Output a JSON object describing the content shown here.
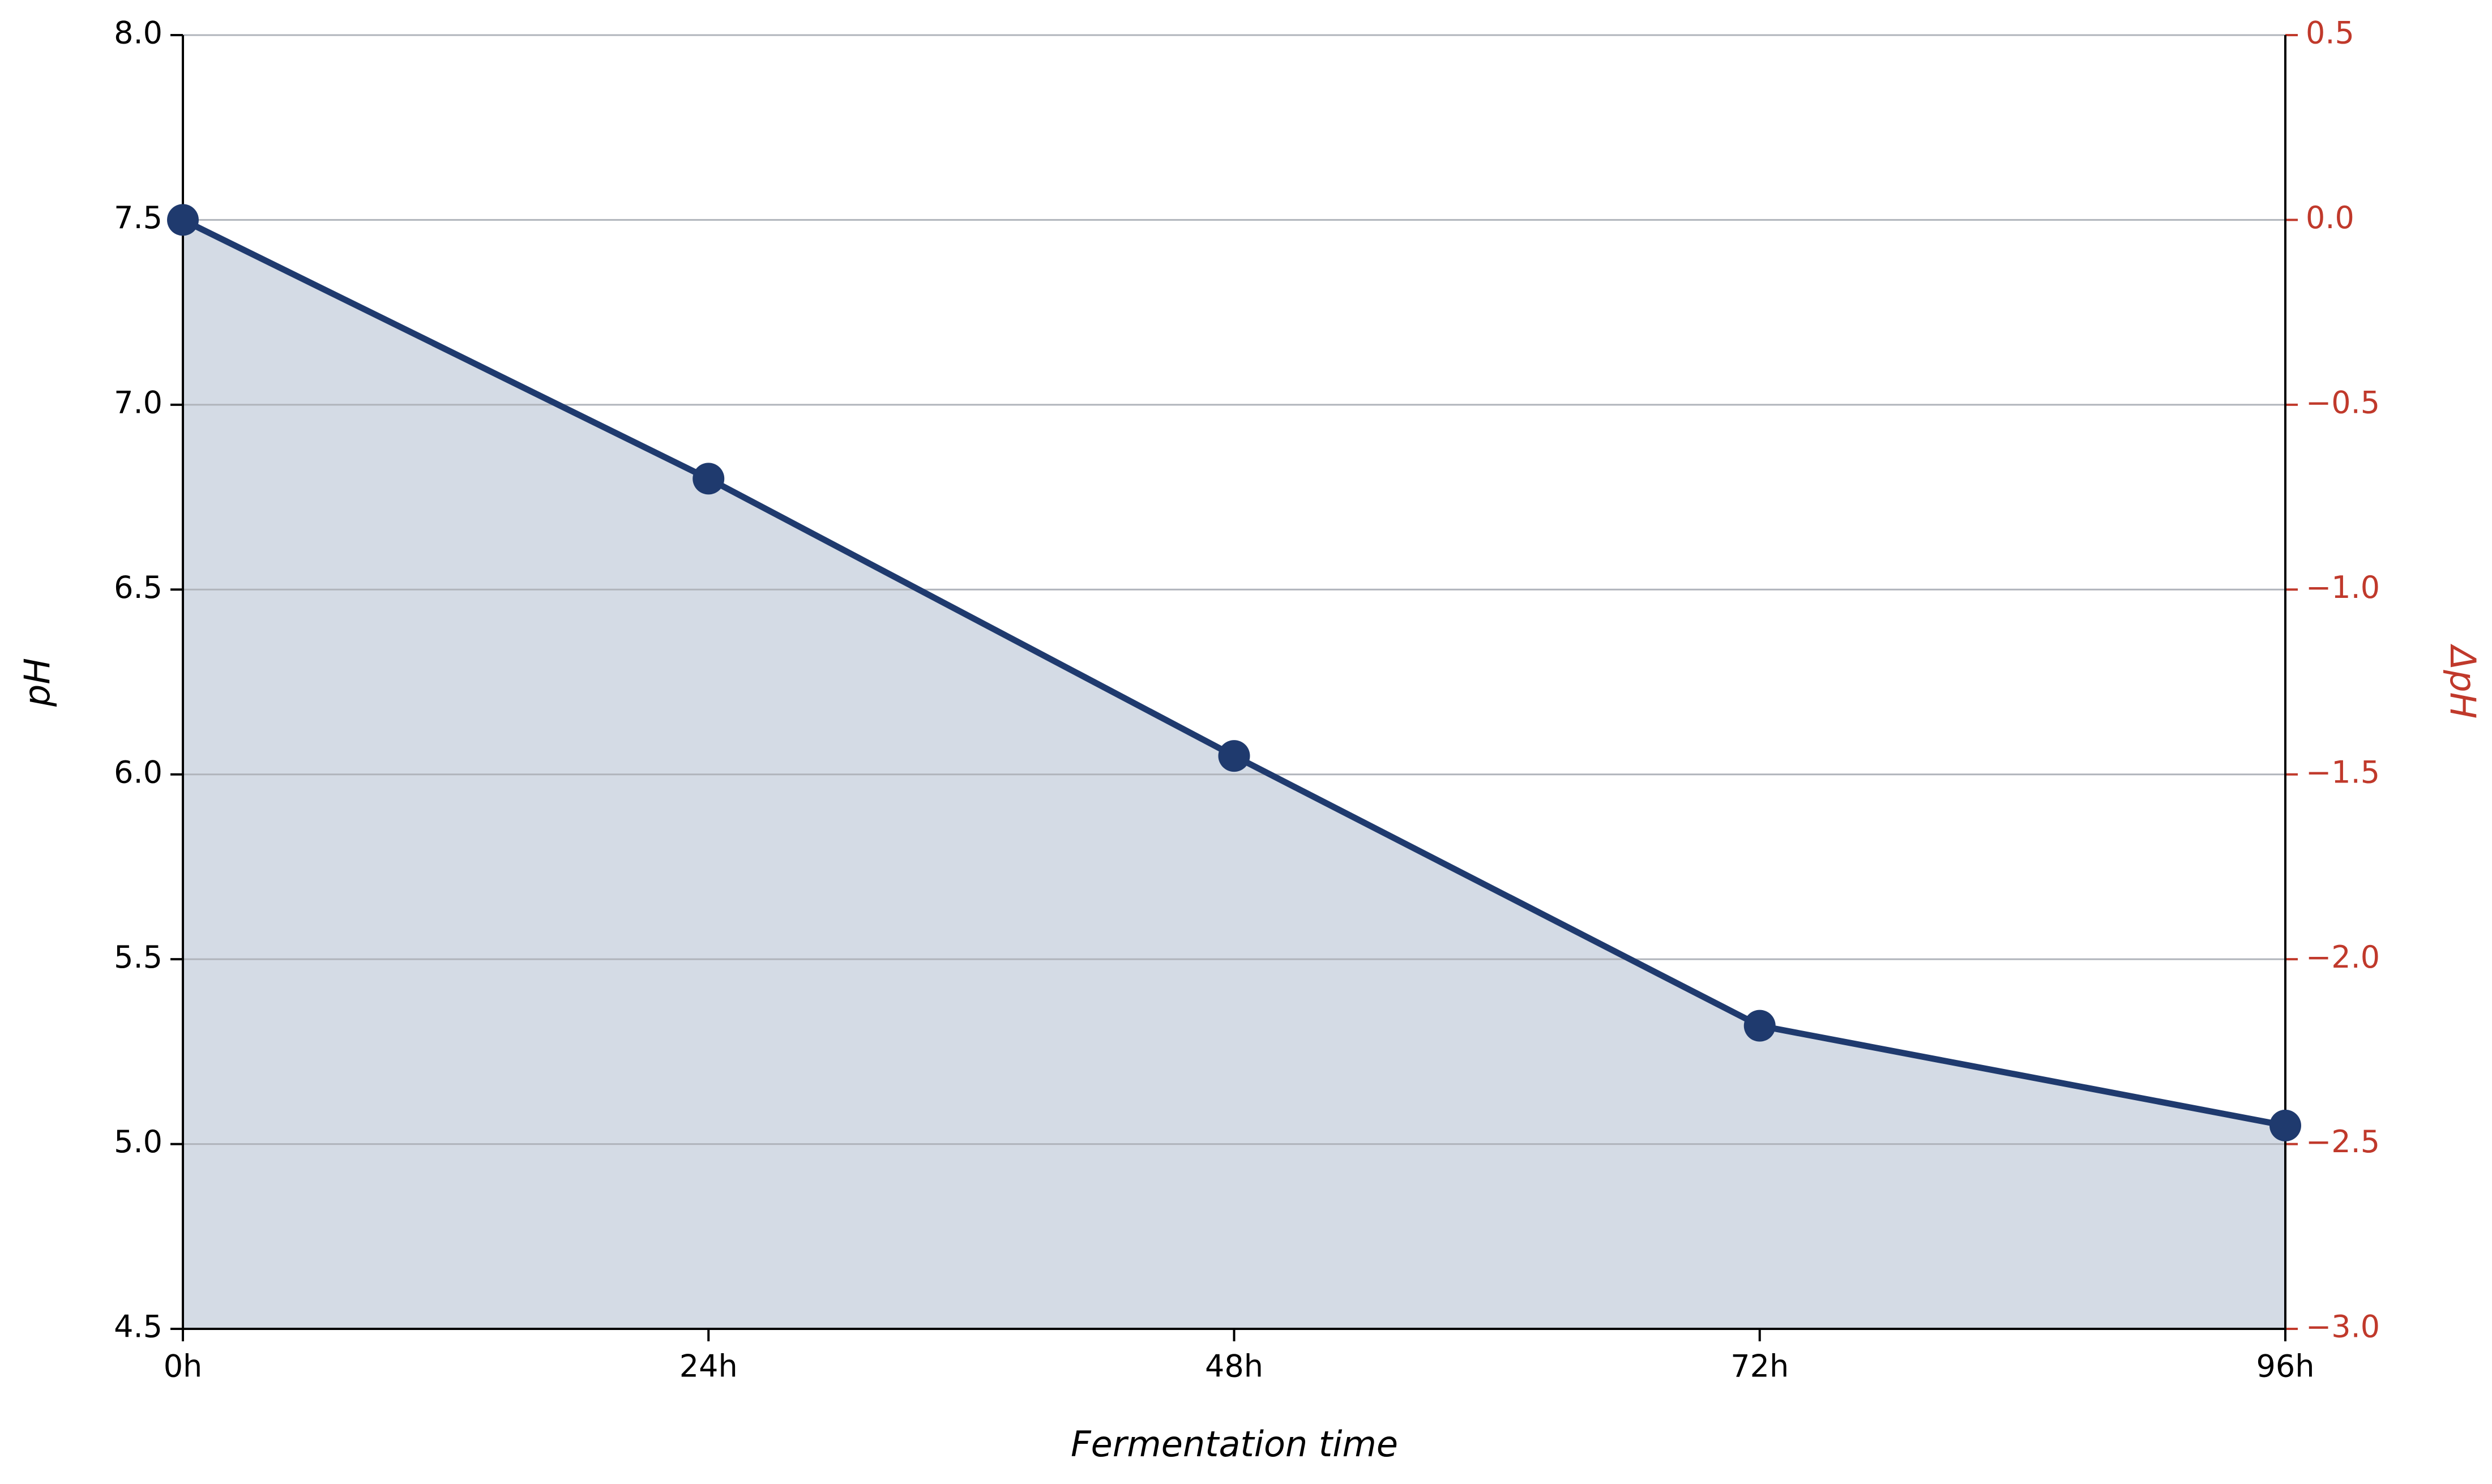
{
  "chart_data": {
    "type": "line",
    "categories": [
      "0h",
      "24h",
      "48h",
      "72h",
      "96h"
    ],
    "values": [
      7.5,
      6.8,
      6.05,
      5.32,
      5.05
    ],
    "color": "#1f3a6e",
    "fill_color": "#d4dbe5",
    "x_label": "Fermentation time",
    "y_label": "pH",
    "y2_label": "ΔpH",
    "y2_color": "#c0392b",
    "ylim": [
      4.5,
      8.0
    ],
    "yticks": [
      4.5,
      {
        "value": 5,
        "label": "5.0"
      },
      5.5,
      {
        "value": 6,
        "label": "6.0"
      },
      6.5,
      {
        "value": 7,
        "label": "7.0"
      },
      7.5,
      {
        "value": 8,
        "label": "8.0"
      }
    ],
    "y2lim": [
      -3.0,
      0.5
    ],
    "y2ticks": [
      {
        "value": -3,
        "label": "−3.0"
      },
      {
        "value": -2.5,
        "label": "−2.5"
      },
      {
        "value": -2,
        "label": "−2.0"
      },
      {
        "value": -1.5,
        "label": "−1.5"
      },
      {
        "value": -1,
        "label": "−1.0"
      },
      {
        "value": -0.5,
        "label": "−0.5"
      },
      {
        "value": 0,
        "label": "0.0"
      },
      0.5
    ],
    "grid": true
  }
}
